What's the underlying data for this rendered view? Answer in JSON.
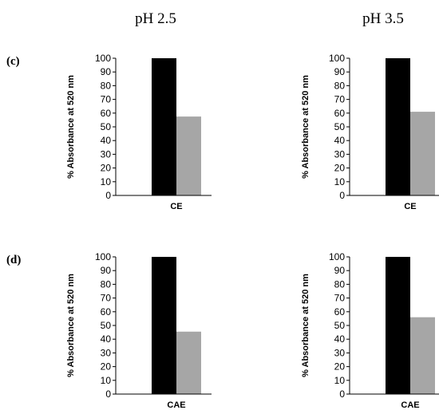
{
  "figure": {
    "column_titles": [
      "pH 2.5",
      "pH 3.5"
    ],
    "row_labels": [
      "(c)",
      "(d)"
    ],
    "colors": {
      "series_1": "#000000",
      "series_2": "#a6a6a6",
      "axis": "#000000"
    }
  },
  "chart_data": [
    {
      "type": "bar",
      "row": "(c)",
      "column": "pH 2.5",
      "categories": [
        "CE"
      ],
      "series": [
        {
          "values": [
            100
          ]
        },
        {
          "values": [
            57.5
          ]
        }
      ],
      "xlabel": "",
      "ylabel": "% Absorbance at 520 nm",
      "ylim": [
        0,
        100
      ],
      "yticks": [
        0,
        10,
        20,
        30,
        40,
        50,
        60,
        70,
        80,
        90,
        100
      ],
      "grid": false
    },
    {
      "type": "bar",
      "row": "(c)",
      "column": "pH 3.5",
      "categories": [
        "CE"
      ],
      "series": [
        {
          "values": [
            100
          ]
        },
        {
          "values": [
            61
          ]
        }
      ],
      "xlabel": "",
      "ylabel": "% Absorbance at 520 nm",
      "ylim": [
        0,
        100
      ],
      "yticks": [
        0,
        10,
        20,
        30,
        40,
        50,
        60,
        70,
        80,
        90,
        100
      ],
      "grid": false
    },
    {
      "type": "bar",
      "row": "(d)",
      "column": "pH 2.5",
      "categories": [
        "CAE"
      ],
      "series": [
        {
          "values": [
            100
          ]
        },
        {
          "values": [
            45.5
          ]
        }
      ],
      "xlabel": "",
      "ylabel": "% Absorbance at 520 nm",
      "ylim": [
        0,
        100
      ],
      "yticks": [
        0,
        10,
        20,
        30,
        40,
        50,
        60,
        70,
        80,
        90,
        100
      ],
      "grid": false
    },
    {
      "type": "bar",
      "row": "(d)",
      "column": "pH 3.5",
      "categories": [
        "CAE"
      ],
      "series": [
        {
          "values": [
            100
          ]
        },
        {
          "values": [
            56
          ]
        }
      ],
      "xlabel": "",
      "ylabel": "% Absorbance at 520 nm",
      "ylim": [
        0,
        100
      ],
      "yticks": [
        0,
        10,
        20,
        30,
        40,
        50,
        60,
        70,
        80,
        90,
        100
      ],
      "grid": false
    }
  ]
}
